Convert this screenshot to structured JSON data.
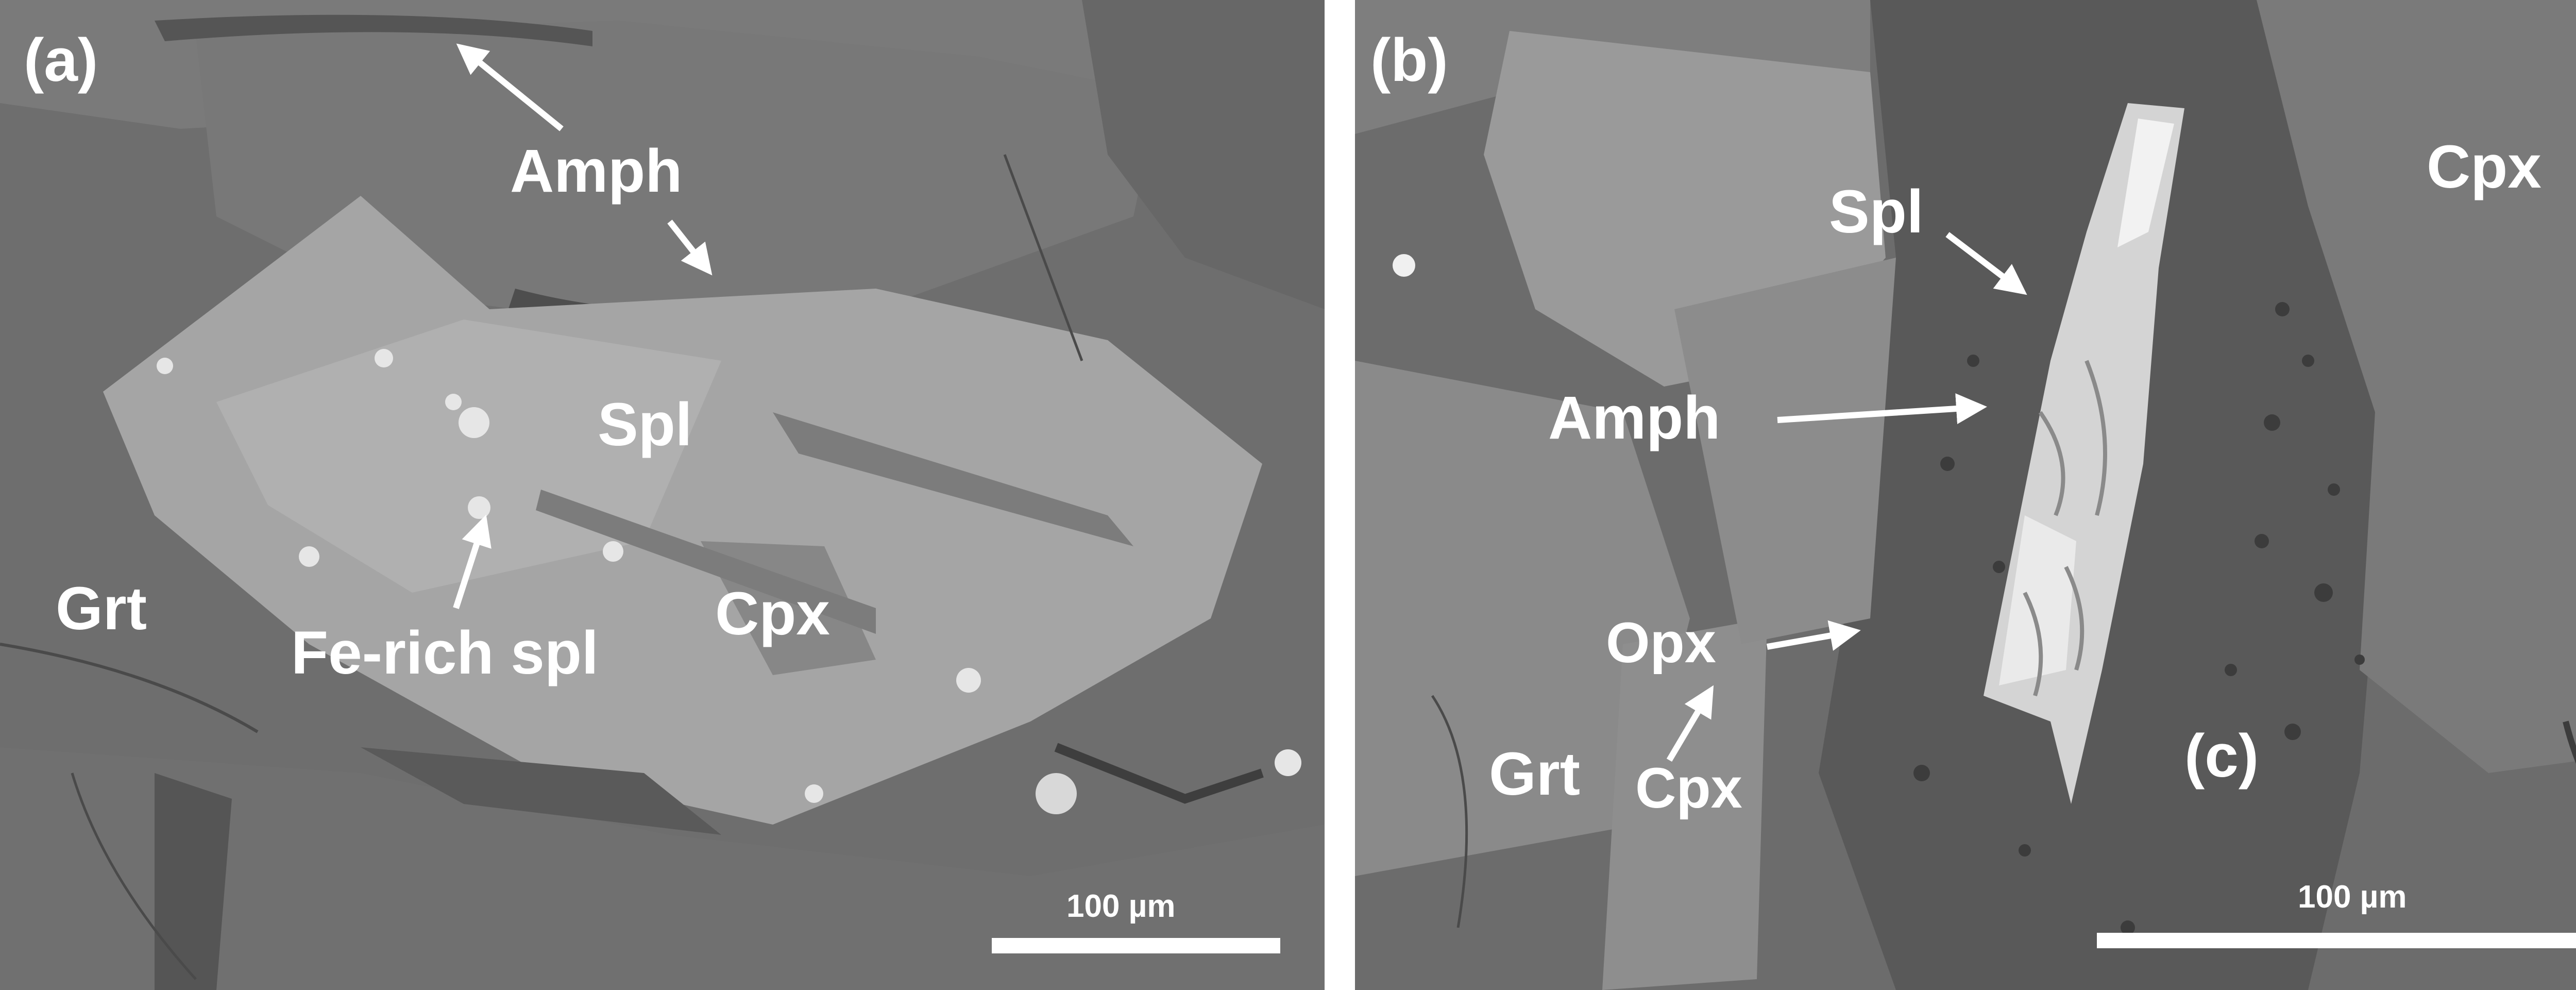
{
  "panel_a": {
    "letter": "(a)",
    "labels": {
      "amph": "Amph",
      "spl": "Spl",
      "grt": "Grt",
      "cpx": "Cpx",
      "fe_rich_spl": "Fe-rich spl"
    },
    "scale_label": "100 µm"
  },
  "panel_b": {
    "letter": "(b)",
    "labels": {
      "cpx_top": "Cpx",
      "spl": "Spl",
      "amph": "Amph",
      "opx": "Opx",
      "grt": "Grt",
      "cpx_bottom": "Cpx",
      "c_marker": "(c)"
    },
    "scale_label": "100 µm"
  },
  "colors": {
    "background_gray": "#6c6c6c",
    "grain_light": "#a6a6a6",
    "grain_mid": "#8a8a8a",
    "grain_dark": "#545454",
    "annotation": "#ffffff"
  }
}
